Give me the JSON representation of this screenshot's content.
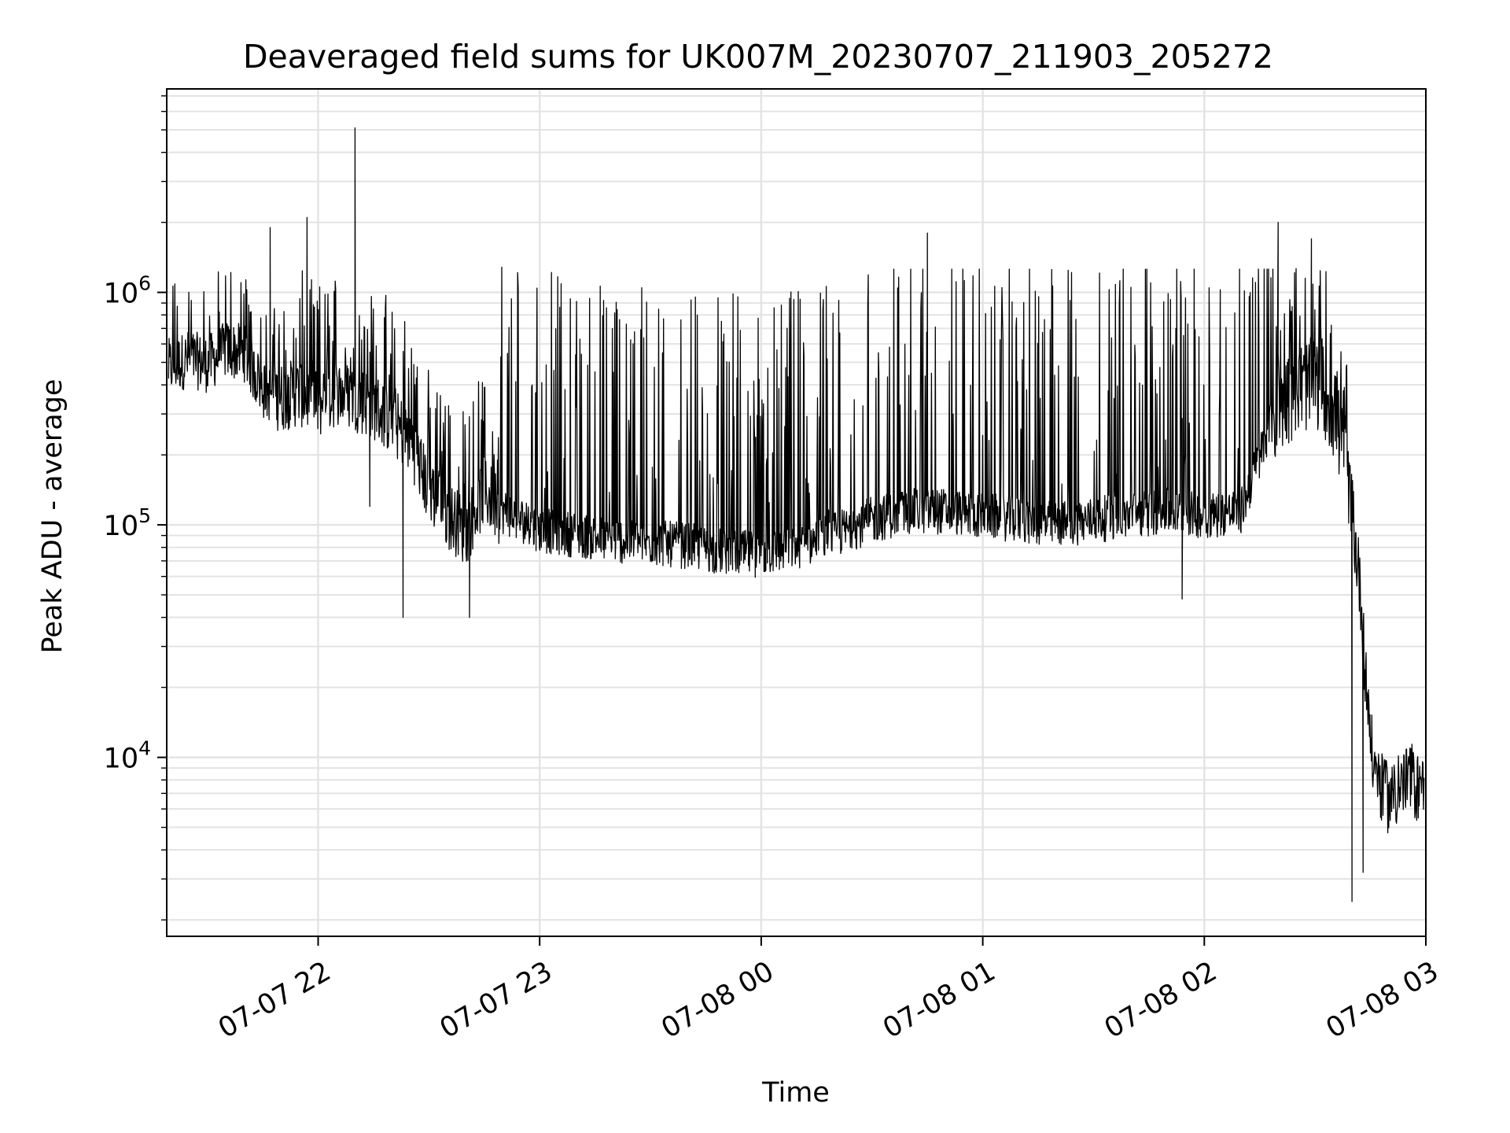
{
  "chart_data": {
    "type": "line",
    "title": "Deaveraged field sums for UK007M_20230707_211903_205272",
    "xlabel": "Time",
    "ylabel": "Peak ADU - average",
    "x_tick_labels": [
      "07-07 22",
      "07-07 23",
      "07-08 00",
      "07-08 01",
      "07-08 02",
      "07-08 03"
    ],
    "y_tick_labels": [
      {
        "base": "10",
        "exp": "4"
      },
      {
        "base": "10",
        "exp": "5"
      },
      {
        "base": "10",
        "exp": "6"
      }
    ],
    "y_scale": "log",
    "ylim": [
      1700,
      7500000
    ],
    "xlim": [
      "2023-07-07 21:19",
      "2023-07-08 03:00"
    ],
    "grid": true,
    "line_color": "#000000",
    "series": [
      {
        "x": [
          "2023-07-07 21:19",
          "2023-07-07 21:25",
          "2023-07-07 21:30",
          "2023-07-07 21:35",
          "2023-07-07 21:40",
          "2023-07-07 21:45",
          "2023-07-07 21:50",
          "2023-07-07 21:55",
          "2023-07-07 22:00",
          "2023-07-07 22:05",
          "2023-07-07 22:10",
          "2023-07-07 22:15",
          "2023-07-07 22:20",
          "2023-07-07 22:25",
          "2023-07-07 22:30",
          "2023-07-07 22:35",
          "2023-07-07 22:40",
          "2023-07-07 22:45",
          "2023-07-07 22:50",
          "2023-07-07 22:55",
          "2023-07-07 23:00",
          "2023-07-07 23:10",
          "2023-07-07 23:20",
          "2023-07-07 23:30",
          "2023-07-07 23:40",
          "2023-07-07 23:50",
          "2023-07-08 00:00",
          "2023-07-08 00:10",
          "2023-07-08 00:20",
          "2023-07-08 00:30",
          "2023-07-08 00:40",
          "2023-07-08 00:50",
          "2023-07-08 01:00",
          "2023-07-08 01:10",
          "2023-07-08 01:20",
          "2023-07-08 01:30",
          "2023-07-08 01:40",
          "2023-07-08 01:50",
          "2023-07-08 02:00",
          "2023-07-08 02:10",
          "2023-07-08 02:20",
          "2023-07-08 02:25",
          "2023-07-08 02:30",
          "2023-07-08 02:33",
          "2023-07-08 02:36",
          "2023-07-08 02:38",
          "2023-07-08 02:40",
          "2023-07-08 02:42",
          "2023-07-08 02:44",
          "2023-07-08 02:46",
          "2023-07-08 02:50",
          "2023-07-08 02:55",
          "2023-07-08 03:00"
        ],
        "y": [
          500000,
          550000,
          520000,
          600000,
          580000,
          400000,
          380000,
          400000,
          350000,
          400000,
          380000,
          350000,
          300000,
          250000,
          150000,
          120000,
          100000,
          150000,
          120000,
          110000,
          100000,
          95000,
          90000,
          88000,
          85000,
          80000,
          78000,
          85000,
          95000,
          110000,
          120000,
          120000,
          115000,
          110000,
          105000,
          110000,
          115000,
          120000,
          115000,
          120000,
          350000,
          420000,
          450000,
          400000,
          300000,
          200000,
          120000,
          60000,
          20000,
          9000,
          7000,
          8500,
          7500
        ]
      }
    ],
    "spikes": [
      {
        "x": "2023-07-07 21:47",
        "y": 1900000
      },
      {
        "x": "2023-07-07 21:57",
        "y": 2100000
      },
      {
        "x": "2023-07-07 22:10",
        "y": 5100000
      },
      {
        "x": "2023-07-07 22:14",
        "y": 120000
      },
      {
        "x": "2023-07-07 22:23",
        "y": 40000
      },
      {
        "x": "2023-07-07 22:41",
        "y": 40000
      },
      {
        "x": "2023-07-08 00:45",
        "y": 1800000
      },
      {
        "x": "2023-07-08 01:54",
        "y": 48000
      },
      {
        "x": "2023-07-08 02:20",
        "y": 2000000
      },
      {
        "x": "2023-07-08 02:29",
        "y": 1700000
      },
      {
        "x": "2023-07-08 02:40",
        "y": 2400
      },
      {
        "x": "2023-07-08 02:43",
        "y": 3200
      }
    ]
  }
}
